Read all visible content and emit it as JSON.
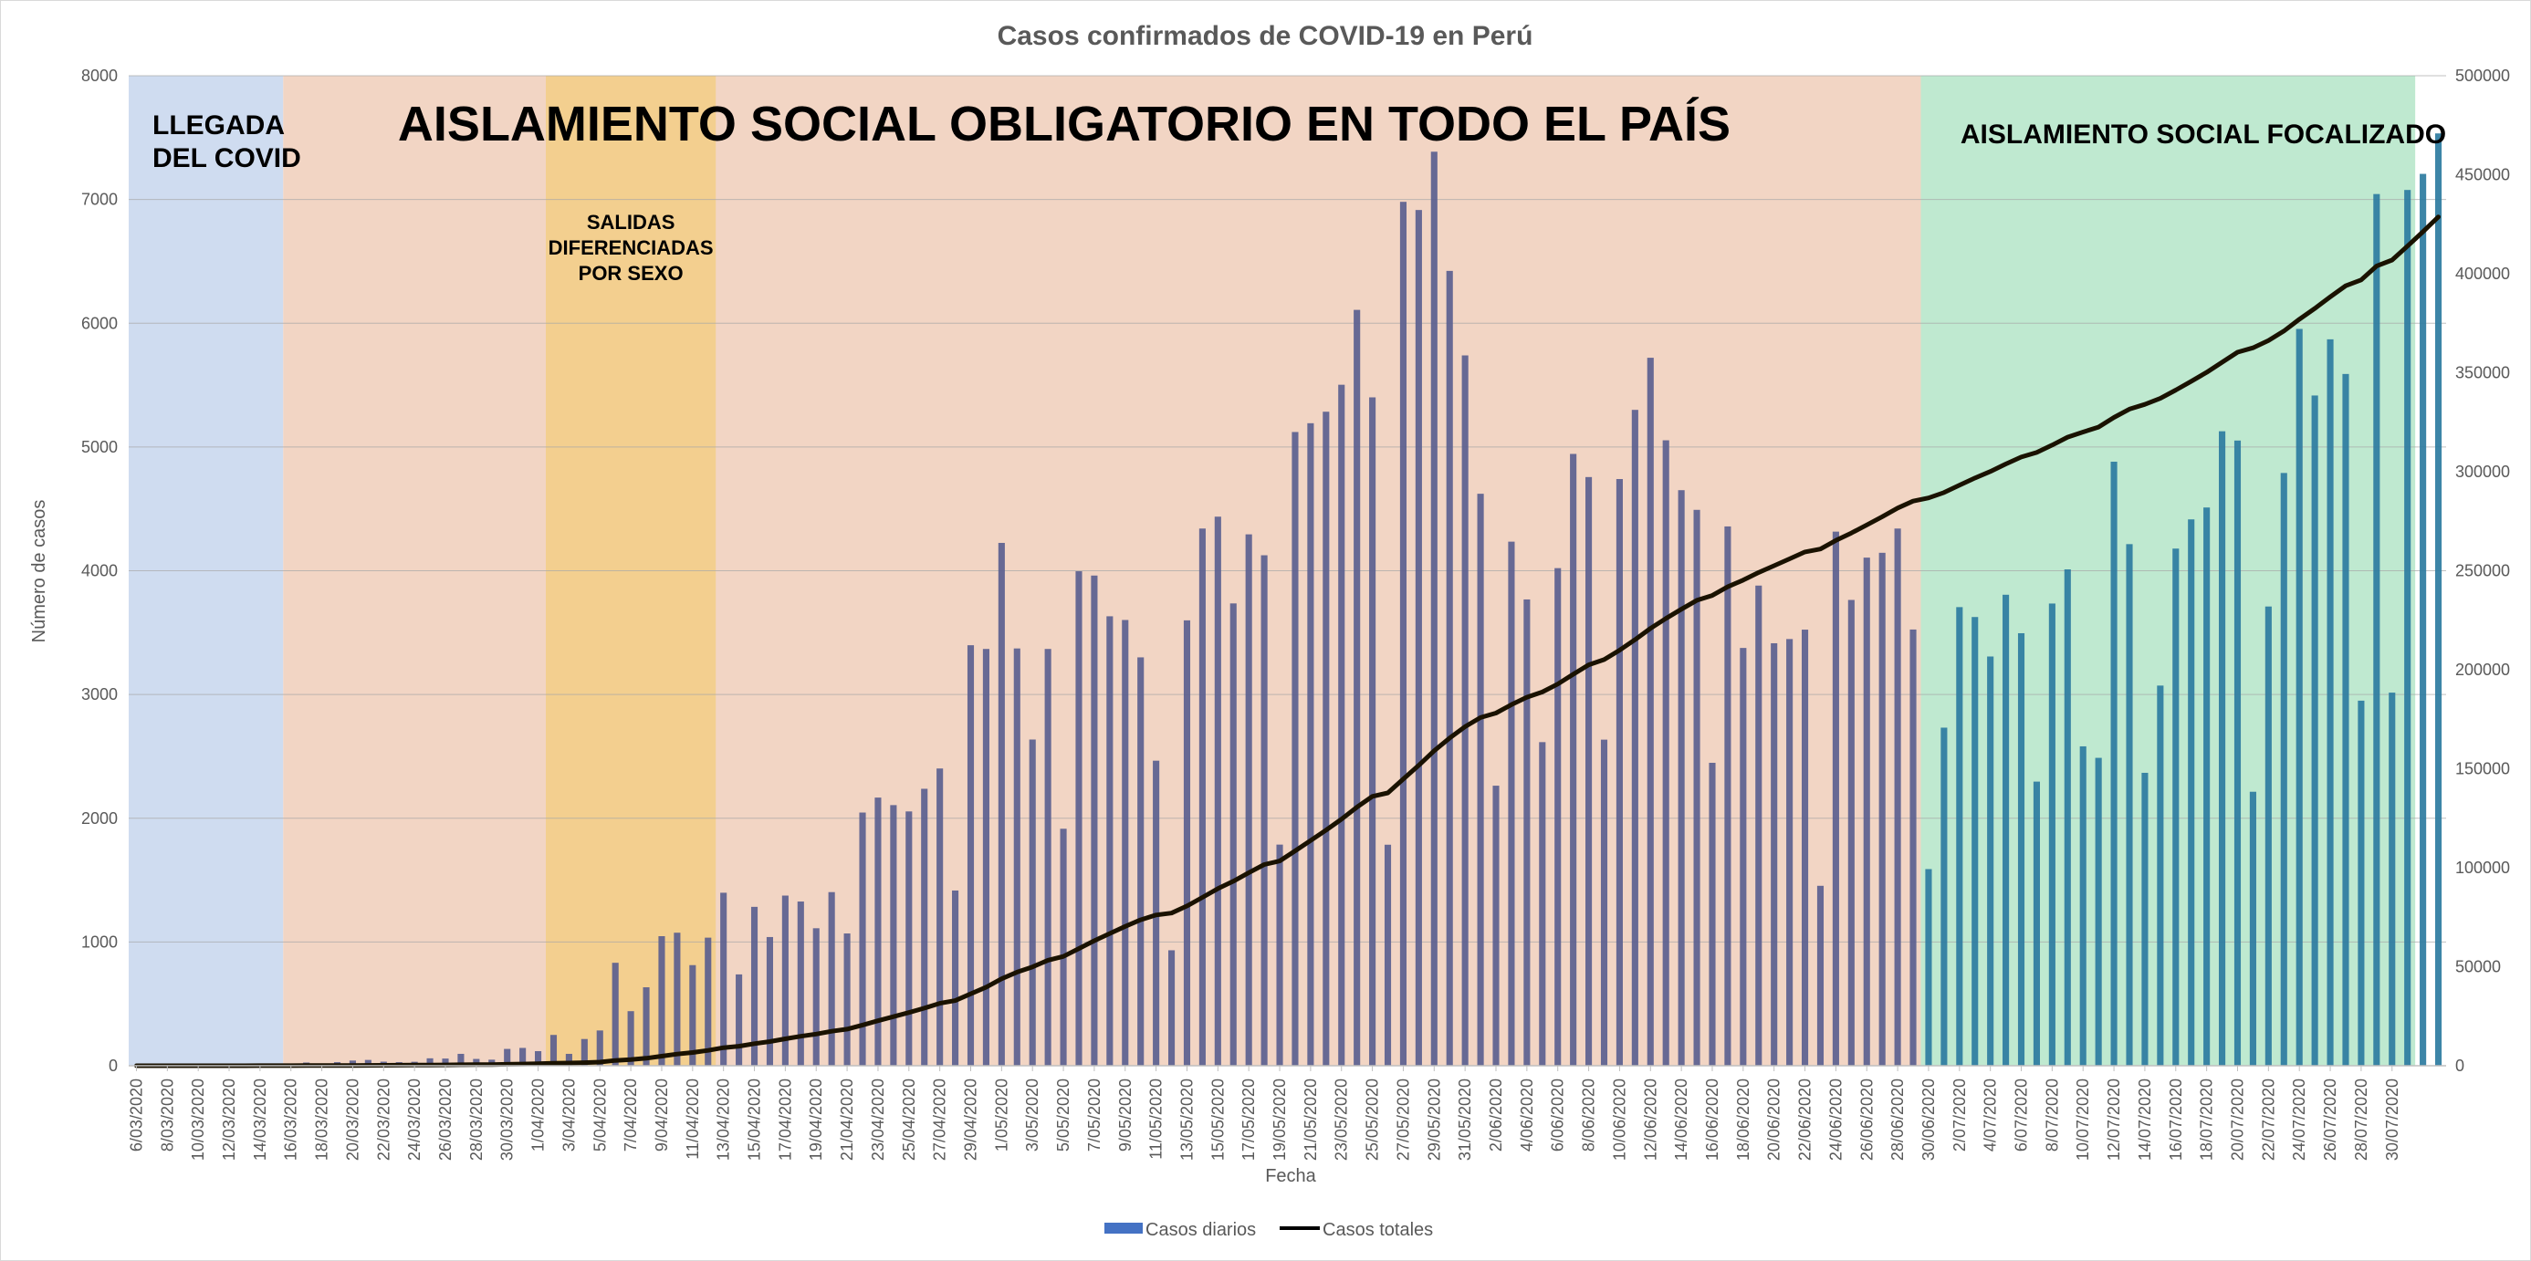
{
  "chart_data": {
    "type": "bar+line",
    "title": "Casos confirmados de COVID-19 en Perú",
    "xlabel": "Fecha",
    "ylabel": "Número de casos",
    "ylim_left": [
      0,
      8000
    ],
    "ylim_right": [
      0,
      500000
    ],
    "left_ticks": [
      "0",
      "1000",
      "2000",
      "3000",
      "4000",
      "5000",
      "6000",
      "7000",
      "8000"
    ],
    "right_ticks": [
      "0",
      "50000",
      "100000",
      "150000",
      "200000",
      "250000",
      "300000",
      "350000",
      "400000",
      "450000",
      "500000"
    ],
    "grid": true,
    "legend_position": "bottom",
    "start_date": "6/03/2020",
    "x_tick_labels": [
      "6/03/2020",
      "8/03/2020",
      "10/03/2020",
      "12/03/2020",
      "14/03/2020",
      "16/03/2020",
      "18/03/2020",
      "20/03/2020",
      "22/03/2020",
      "24/03/2020",
      "26/03/2020",
      "28/03/2020",
      "30/03/2020",
      "1/04/2020",
      "3/04/2020",
      "5/04/2020",
      "7/04/2020",
      "9/04/2020",
      "11/04/2020",
      "13/04/2020",
      "15/04/2020",
      "17/04/2020",
      "19/04/2020",
      "21/04/2020",
      "23/04/2020",
      "25/04/2020",
      "27/04/2020",
      "29/04/2020",
      "1/05/2020",
      "3/05/2020",
      "5/05/2020",
      "7/05/2020",
      "9/05/2020",
      "11/05/2020",
      "13/05/2020",
      "15/05/2020",
      "17/05/2020",
      "19/05/2020",
      "21/05/2020",
      "23/05/2020",
      "25/05/2020",
      "27/05/2020",
      "29/05/2020",
      "31/05/2020",
      "2/06/2020",
      "4/06/2020",
      "6/06/2020",
      "8/06/2020",
      "10/06/2020",
      "12/06/2020",
      "14/06/2020",
      "16/06/2020",
      "18/06/2020",
      "20/06/2020",
      "22/06/2020",
      "24/06/2020",
      "26/06/2020",
      "28/06/2020",
      "30/06/2020",
      "2/07/2020",
      "4/07/2020",
      "6/07/2020",
      "8/07/2020",
      "10/07/2020",
      "12/07/2020",
      "14/07/2020",
      "16/07/2020",
      "18/07/2020",
      "20/07/2020",
      "22/07/2020",
      "24/07/2020",
      "26/07/2020",
      "28/07/2020",
      "30/07/2020"
    ],
    "regions": [
      {
        "label_lines": [
          "LLEGADA",
          "DEL COVID"
        ],
        "from_index": 0,
        "to_index": 10,
        "color": "#cfdcf0"
      },
      {
        "label_lines": [
          "AISLAMIENTO SOCIAL OBLIGATORIO EN TODO EL PAÍS"
        ],
        "from_index": 10,
        "to_index": 116,
        "color": "#f2d5c4"
      },
      {
        "label_lines": [
          "SALIDAS",
          "DIFERENCIADAS",
          "POR SEXO"
        ],
        "from_index": 27,
        "to_index": 38,
        "color": "#f3cf8f"
      },
      {
        "label_lines": [
          "AISLAMIENTO SOCIAL FOCALIZADO"
        ],
        "from_index": 116,
        "to_index": 148,
        "color": "#bfe9d0"
      }
    ],
    "series": [
      {
        "name": "Casos diarios",
        "type": "bar",
        "color": "#5b5f8f",
        "values": [
          1,
          0,
          3,
          2,
          2,
          4,
          2,
          5,
          5,
          9,
          15,
          26,
          14,
          29,
          42,
          47,
          33,
          29,
          32,
          60,
          58,
          96,
          55,
          49,
          136,
          144,
          118,
          249,
          96,
          216,
          285,
          832,
          441,
          634,
          1047,
          1075,
          813,
          1035,
          1398,
          738,
          1284,
          1040,
          1375,
          1327,
          1111,
          1403,
          1069,
          2046,
          2167,
          2106,
          2055,
          2238,
          2402,
          1416,
          3398,
          3368,
          4225,
          3372,
          2636,
          3368,
          1915,
          3996,
          3961,
          3632,
          3602,
          3300,
          2465,
          933,
          3599,
          4341,
          4437,
          3736,
          4294,
          4125,
          1787,
          5121,
          5192,
          5285,
          5503,
          6108,
          5401,
          1786,
          6981,
          6915,
          7386,
          6423,
          5740,
          4622,
          2263,
          4235,
          3768,
          2615,
          4021,
          4944,
          4757,
          2635,
          4741,
          5300,
          5721,
          5054,
          4651,
          4492,
          2448,
          4358,
          3376,
          3880,
          3414,
          3448,
          3524,
          1454,
          4316,
          3764,
          4106,
          4145,
          4341,
          3525,
          1589,
          2732,
          3706,
          3626,
          3307,
          3806,
          3495,
          2296,
          3735,
          4011,
          2581,
          2488,
          4881,
          4215,
          2367,
          3072,
          4179,
          4415,
          4511,
          5127,
          5052,
          2214,
          3711,
          4790,
          5954,
          5416,
          5870,
          5590,
          2950,
          7044,
          3015,
          7077,
          7207,
          7534
        ]
      },
      {
        "name": "Casos totales",
        "type": "line",
        "color": "#1a1200"
      }
    ]
  }
}
